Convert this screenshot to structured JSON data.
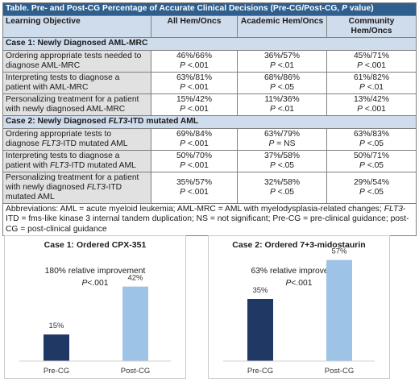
{
  "table": {
    "title_parts": [
      "Table. Pre- and Post-CG Percentage of Accurate Clinical Decisions (Pre-CG/Post-CG, ",
      "P",
      " value)"
    ],
    "headers": [
      "Learning Objective",
      "All Hem/Oncs",
      "Academic Hem/Oncs",
      "Community Hem/Oncs"
    ],
    "case1": {
      "label": "Case 1: Newly Diagnosed AML-MRC",
      "rows": [
        {
          "objective": [
            "Ordering appropriate tests needed to",
            "diagnose AML-MRC"
          ],
          "cells": [
            [
              "46%/66%",
              "<.001"
            ],
            [
              "36%/57%",
              "<.01"
            ],
            [
              "45%/71%",
              "<.001"
            ]
          ]
        },
        {
          "objective": [
            "Interpreting tests to diagnose a",
            "patient with AML-MRC"
          ],
          "cells": [
            [
              "63%/81%",
              "<.001"
            ],
            [
              "68%/86%",
              "<.05"
            ],
            [
              "61%/82%",
              "<.01"
            ]
          ]
        },
        {
          "objective": [
            "Personalizing treatment for a patient",
            "with newly diagnosed AML-MRC"
          ],
          "cells": [
            [
              "15%/42%",
              "<.001"
            ],
            [
              "11%/36%",
              "<.01"
            ],
            [
              "13%/42%",
              "<.001"
            ]
          ]
        }
      ]
    },
    "case2": {
      "label_parts": [
        "Case 2: Newly Diagnosed ",
        "FLT3",
        "-ITD mutated AML"
      ],
      "rows": [
        {
          "objective": [
            "Ordering appropriate tests to",
            "diagnose ",
            "FLT3",
            "-ITD mutated AML"
          ],
          "cells": [
            [
              "69%/84%",
              "<.001"
            ],
            [
              "63%/79%",
              "= NS"
            ],
            [
              "63%/83%",
              "<.05"
            ]
          ]
        },
        {
          "objective": [
            "Interpreting tests to diagnose a",
            "patient with ",
            "FLT3",
            "-ITD mutated AML"
          ],
          "cells": [
            [
              "50%/70%",
              "<.001"
            ],
            [
              "37%/58%",
              "<.05"
            ],
            [
              "50%/71%",
              "<.05"
            ]
          ]
        },
        {
          "objective": [
            "Personalizing treatment for a patient",
            "with newly diagnosed ",
            "FLT3",
            "-ITD",
            "mutated AML"
          ],
          "cells": [
            [
              "35%/57%",
              "<.001"
            ],
            [
              "32%/58%",
              "<.05"
            ],
            [
              "29%/54%",
              "<.05"
            ]
          ]
        }
      ]
    },
    "p_symbol": "P",
    "abbreviations": [
      "Abbreviations: AML = acute myeloid leukemia; AML-MRC = AML with myelodysplasia-related changes; ",
      "FLT3",
      "-ITD = fms-like kinase 3 internal tandem duplication; NS = not significant; Pre-CG = pre-clinical guidance; post-CG = post-clinical guidance"
    ]
  },
  "chart_data": [
    {
      "type": "bar",
      "title": "Case 1: Ordered CPX-351",
      "annotation": "180% relative improvement",
      "p_value": "<.001",
      "categories": [
        "Pre-CG",
        "Post-CG"
      ],
      "values": [
        15,
        42
      ],
      "value_labels": [
        "15%",
        "42%"
      ],
      "colors": [
        "#1f3864",
        "#9dc3e6"
      ],
      "ylim": [
        0,
        60
      ]
    },
    {
      "type": "bar",
      "title": "Case 2: Ordered 7+3-midostaurin",
      "annotation": "63% relative improvement",
      "p_value": "<.001",
      "categories": [
        "Pre-CG",
        "Post-CG"
      ],
      "values": [
        35,
        57
      ],
      "value_labels": [
        "35%",
        "57%"
      ],
      "colors": [
        "#1f3864",
        "#9dc3e6"
      ],
      "ylim": [
        0,
        60
      ]
    }
  ]
}
